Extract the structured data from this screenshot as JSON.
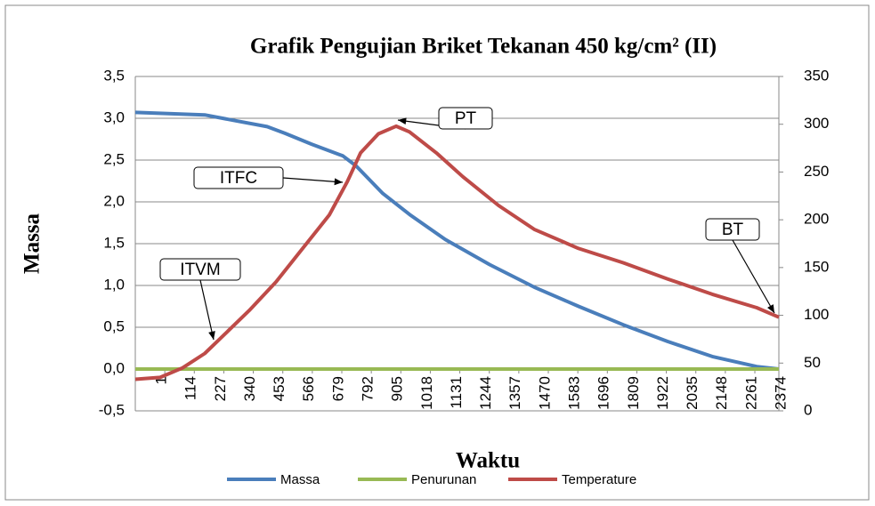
{
  "chart_data": {
    "type": "line",
    "title": "Grafik Pengujian Briket Tekanan 450 kg/cm² (II)",
    "xlabel": "Waktu",
    "ylabel": "Massa",
    "xlim": [
      1,
      2466
    ],
    "xticks": [
      1,
      114,
      227,
      340,
      453,
      566,
      679,
      792,
      905,
      1018,
      1131,
      1244,
      1357,
      1470,
      1583,
      1696,
      1809,
      1922,
      2035,
      2148,
      2261,
      2374
    ],
    "ylim": [
      -0.5,
      3.5
    ],
    "yticks": [
      {
        "value": -0.5,
        "label": "-0,5"
      },
      {
        "value": 0,
        "label": "0,0"
      },
      {
        "value": 0.5,
        "label": "0,5"
      },
      {
        "value": 1,
        "label": "1,0"
      },
      {
        "value": 1.5,
        "label": "1,5"
      },
      {
        "value": 2,
        "label": "2,0"
      },
      {
        "value": 2.5,
        "label": "2,5"
      },
      {
        "value": 3,
        "label": "3,0"
      },
      {
        "value": 3.5,
        "label": "3,5"
      }
    ],
    "y2lim": [
      0,
      350
    ],
    "y2ticks": [
      0,
      50,
      100,
      150,
      200,
      250,
      300,
      350
    ],
    "grid": true,
    "legend": "bottom",
    "series": [
      {
        "name": "Massa",
        "color": "#4a7ebb",
        "x": [
          1,
          267,
          386,
          506,
          574,
          676,
          796,
          847,
          949,
          1051,
          1188,
          1358,
          1529,
          1699,
          1870,
          2040,
          2211,
          2381,
          2466
        ],
        "values": [
          3.07,
          3.04,
          2.97,
          2.9,
          2.82,
          2.69,
          2.55,
          2.43,
          2.1,
          1.85,
          1.55,
          1.25,
          0.98,
          0.75,
          0.53,
          0.33,
          0.15,
          0.03,
          0.0
        ]
      },
      {
        "name": "Penurunan",
        "color": "#98b954",
        "x": [
          1,
          2466
        ],
        "values": [
          0,
          0
        ]
      },
      {
        "name": "Temperature",
        "color": "#be4b48",
        "axis": "y2",
        "x": [
          1,
          96,
          182,
          267,
          335,
          437,
          540,
          642,
          744,
          813,
          864,
          932,
          1000,
          1051,
          1154,
          1256,
          1392,
          1529,
          1699,
          1870,
          2040,
          2211,
          2381,
          2466
        ],
        "values": [
          33,
          35,
          45,
          60,
          78,
          105,
          135,
          170,
          205,
          240,
          270,
          290,
          298,
          292,
          270,
          245,
          215,
          190,
          170,
          155,
          138,
          122,
          108,
          98
        ]
      }
    ],
    "annotations": [
      "PT",
      "ITFC",
      "ITVM",
      "BT"
    ]
  }
}
